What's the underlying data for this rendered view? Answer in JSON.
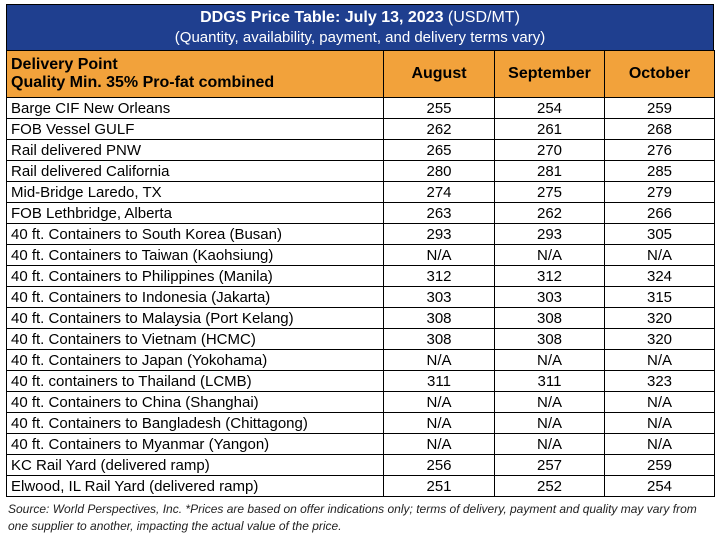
{
  "title": {
    "main": "DDGS Price Table: July 13, 2023",
    "unit": "(USD/MT)",
    "subtitle": "(Quantity, availability, payment, and delivery terms vary)"
  },
  "header": {
    "delivery_point": "Delivery Point",
    "quality": "Quality Min. 35% Pro-fat combined",
    "months": [
      "August",
      "September",
      "October"
    ]
  },
  "rows": [
    {
      "point": "Barge CIF New Orleans",
      "values": [
        "255",
        "254",
        "259"
      ]
    },
    {
      "point": "FOB Vessel GULF",
      "values": [
        "262",
        "261",
        "268"
      ]
    },
    {
      "point": "Rail delivered PNW",
      "values": [
        "265",
        "270",
        "276"
      ]
    },
    {
      "point": "Rail delivered California",
      "values": [
        "280",
        "281",
        "285"
      ]
    },
    {
      "point": "Mid-Bridge Laredo, TX",
      "values": [
        "274",
        "275",
        "279"
      ]
    },
    {
      "point": "FOB Lethbridge, Alberta",
      "values": [
        "263",
        "262",
        "266"
      ]
    },
    {
      "point": "40 ft. Containers to South Korea (Busan)",
      "values": [
        "293",
        "293",
        "305"
      ]
    },
    {
      "point": "40 ft. Containers to Taiwan (Kaohsiung)",
      "values": [
        "N/A",
        "N/A",
        "N/A"
      ]
    },
    {
      "point": "40 ft. Containers to Philippines (Manila)",
      "values": [
        "312",
        "312",
        "324"
      ]
    },
    {
      "point": "40 ft. Containers to Indonesia (Jakarta)",
      "values": [
        "303",
        "303",
        "315"
      ]
    },
    {
      "point": "40 ft. Containers to Malaysia (Port Kelang)",
      "values": [
        "308",
        "308",
        "320"
      ]
    },
    {
      "point": "40 ft. Containers to Vietnam (HCMC)",
      "values": [
        "308",
        "308",
        "320"
      ]
    },
    {
      "point": "40 ft. Containers to Japan (Yokohama)",
      "values": [
        "N/A",
        "N/A",
        "N/A"
      ]
    },
    {
      "point": "40 ft. containers to Thailand (LCMB)",
      "values": [
        "311",
        "311",
        "323"
      ]
    },
    {
      "point": "40 ft. Containers to China (Shanghai)",
      "values": [
        "N/A",
        "N/A",
        "N/A"
      ]
    },
    {
      "point": "40 ft. Containers to Bangladesh (Chittagong)",
      "values": [
        "N/A",
        "N/A",
        "N/A"
      ]
    },
    {
      "point": "40 ft. Containers to Myanmar (Yangon)",
      "values": [
        "N/A",
        "N/A",
        "N/A"
      ]
    },
    {
      "point": "KC Rail Yard (delivered ramp)",
      "values": [
        "256",
        "257",
        "259"
      ]
    },
    {
      "point": "Elwood, IL Rail Yard (delivered ramp)",
      "values": [
        "251",
        "252",
        "254"
      ]
    }
  ],
  "source": "Source: World Perspectives, Inc. *Prices are based on offer indications only; terms of delivery, payment and quality may vary from one supplier to another, impacting the actual value of the price.",
  "colors": {
    "title_bg": "#1f3f8f",
    "header_bg": "#f2a23b"
  }
}
